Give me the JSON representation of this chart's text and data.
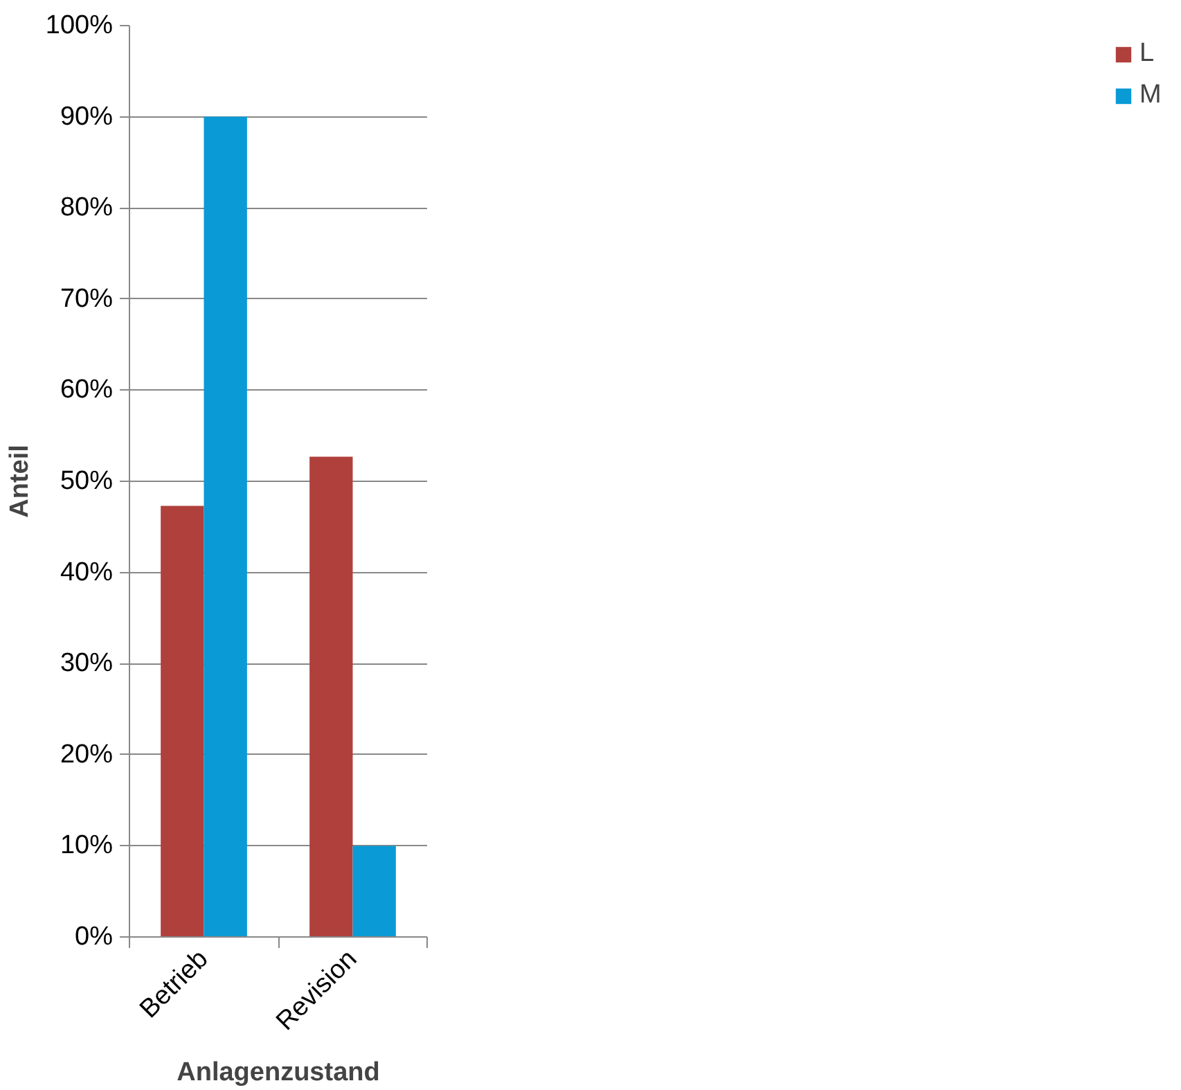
{
  "chart_data": {
    "type": "bar",
    "xlabel": "Anlagenzustand",
    "ylabel": "Anteil",
    "categories": [
      "Betrieb",
      "Revision"
    ],
    "series": [
      {
        "name": "L",
        "color": "#b0403c",
        "values": [
          47.3,
          52.7
        ]
      },
      {
        "name": "M",
        "color": "#0a9ad6",
        "values": [
          90,
          10
        ]
      }
    ],
    "ylim": [
      0,
      100
    ],
    "yticks": [
      {
        "value": 0,
        "label": "0%"
      },
      {
        "value": 10,
        "label": "10%"
      },
      {
        "value": 20,
        "label": "20%"
      },
      {
        "value": 30,
        "label": "30%"
      },
      {
        "value": 40,
        "label": "40%"
      },
      {
        "value": 50,
        "label": "50%"
      },
      {
        "value": 60,
        "label": "60%"
      },
      {
        "value": 70,
        "label": "70%"
      },
      {
        "value": 80,
        "label": "80%"
      },
      {
        "value": 90,
        "label": "90%"
      },
      {
        "value": 100,
        "label": "100%"
      }
    ],
    "grid": "y",
    "legend": "right"
  }
}
